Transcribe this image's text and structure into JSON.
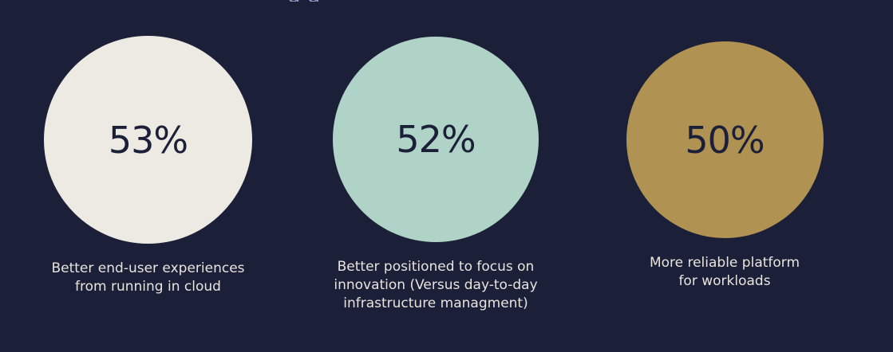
{
  "page": {
    "heading_fragment": "g g"
  },
  "chart_data": {
    "type": "bubble",
    "unit": "%",
    "items": [
      {
        "value": 53,
        "value_label": "53%",
        "label": "Better end-user experiences\nfrom running in cloud",
        "color": "#ede9e3"
      },
      {
        "value": 52,
        "value_label": "52%",
        "label": "Better positioned to focus on\ninnovation (Versus day-to-day\ninfrastructure managment)",
        "color": "#afd3c6"
      },
      {
        "value": 50,
        "value_label": "50%",
        "label": "More reliable platform\nfor workloads",
        "color": "#b09253"
      }
    ]
  }
}
